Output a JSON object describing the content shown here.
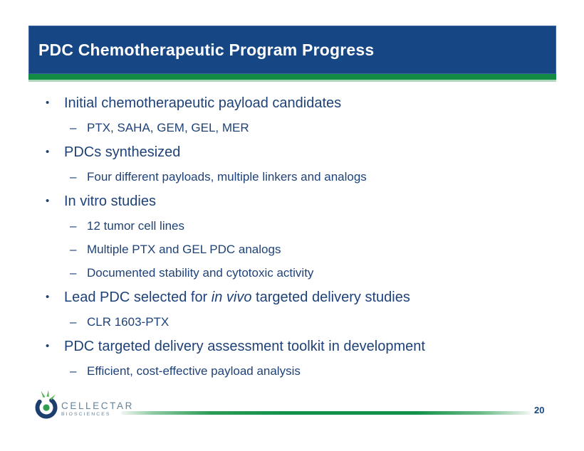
{
  "header": {
    "title": "PDC Chemotherapeutic Program Progress"
  },
  "colors": {
    "header_bg": "#164784",
    "accent_green": "#148b44",
    "accent_green_light": "#aed7bb",
    "body_text": "#1e4278",
    "logo_text": "#64839b",
    "logo_dot_green": "#2f9e4f",
    "logo_ring_blue": "#1c3f6d"
  },
  "content": {
    "marker_l1": "•",
    "marker_l2": "–",
    "bullets": [
      {
        "segments": [
          {
            "text": "Initial chemotherapeutic payload candidates"
          }
        ],
        "subs": [
          "PTX, SAHA, GEM, GEL, MER"
        ]
      },
      {
        "segments": [
          {
            "text": "PDCs synthesized"
          }
        ],
        "subs": [
          "Four different payloads, multiple linkers and analogs"
        ]
      },
      {
        "segments": [
          {
            "text": "In vitro studies"
          }
        ],
        "subs": [
          "12 tumor cell lines",
          "Multiple PTX and GEL PDC analogs",
          "Documented stability and cytotoxic activity"
        ]
      },
      {
        "segments": [
          {
            "text": "Lead PDC selected for "
          },
          {
            "text": "in vivo",
            "italic": true
          },
          {
            "text": " targeted delivery studies"
          }
        ],
        "subs": [
          "CLR 1603-PTX"
        ]
      },
      {
        "segments": [
          {
            "text": "PDC targeted delivery assessment toolkit in development"
          }
        ],
        "subs": [
          "Efficient, cost-effective payload analysis"
        ]
      }
    ]
  },
  "footer": {
    "logo_name": "CELLECTAR",
    "logo_tagline": "BIOSCIENCES",
    "page_number": "20"
  }
}
